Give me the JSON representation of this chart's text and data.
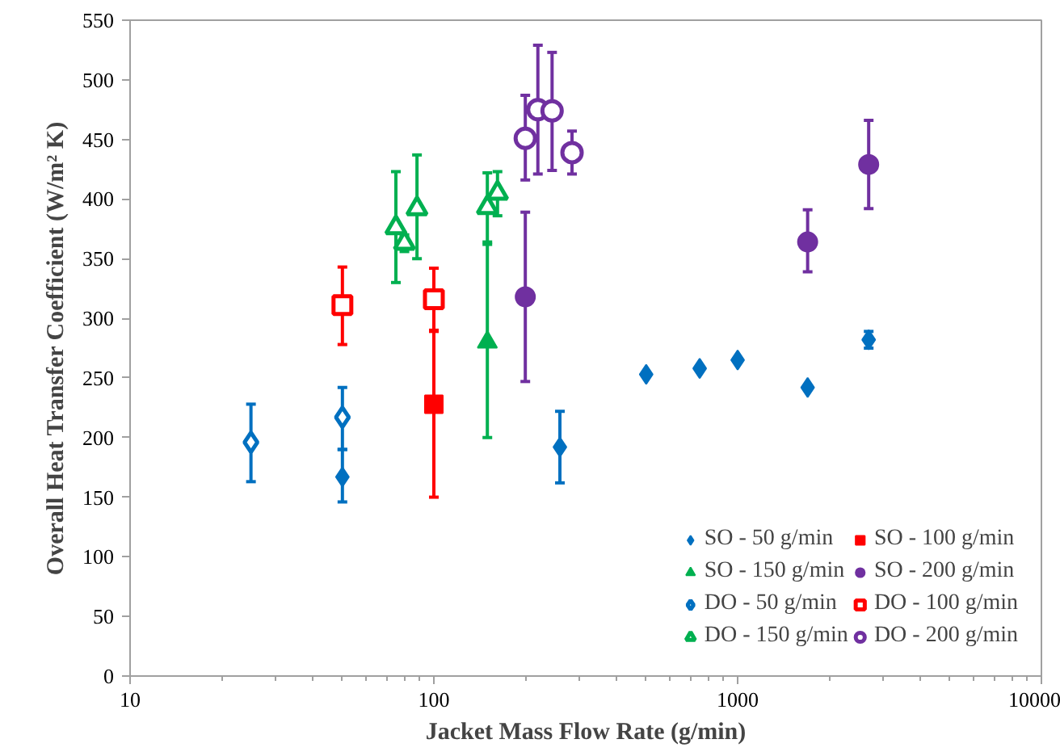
{
  "chart_data": {
    "type": "scatter",
    "xlabel": "Jacket Mass Flow Rate (g/min)",
    "ylabel": "Overall Heat Transfer Coefficient (W/m² K)",
    "log": "x",
    "xlim": [
      10,
      10000
    ],
    "xticks": [
      10,
      100,
      1000,
      10000
    ],
    "ylim": [
      0,
      550
    ],
    "yticks": [
      0,
      50,
      100,
      150,
      200,
      250,
      300,
      350,
      400,
      450,
      500,
      550
    ],
    "grid": false,
    "legend": "bottom right",
    "series": [
      {
        "name": "SO - 50 g/min",
        "color": "#0070c0",
        "marker": "diamond",
        "x": [
          50,
          260,
          500,
          750,
          1000,
          1700,
          2700
        ],
        "values": [
          167,
          192,
          253,
          258,
          265,
          242,
          282
        ],
        "errors": [
          [
            146,
            190
          ],
          [
            162,
            222
          ],
          null,
          null,
          null,
          null,
          [
            275,
            289
          ]
        ]
      },
      {
        "name": "SO - 100 g/min",
        "color": "#ff0000",
        "marker": "square",
        "x": [
          100
        ],
        "values": [
          228
        ],
        "errors": [
          [
            150,
            290
          ]
        ]
      },
      {
        "name": "SO - 150 g/min",
        "color": "#00b050",
        "marker": "triangle",
        "x": [
          150
        ],
        "values": [
          280
        ],
        "errors": [
          [
            200,
            362
          ]
        ]
      },
      {
        "name": "SO - 200 g/min",
        "color": "#7030a0",
        "marker": "circle",
        "x": [
          200,
          1700,
          2700
        ],
        "values": [
          318,
          364,
          429
        ],
        "errors": [
          [
            247,
            389
          ],
          [
            339,
            391
          ],
          [
            392,
            466
          ]
        ]
      },
      {
        "name": "DO - 50 g/min",
        "color": "#0070c0",
        "marker": "diamond_open",
        "x": [
          25,
          50
        ],
        "values": [
          196,
          217
        ],
        "errors": [
          [
            163,
            228
          ],
          [
            190,
            242
          ]
        ]
      },
      {
        "name": "DO - 100 g/min",
        "color": "#ff0000",
        "marker": "square_open",
        "x": [
          50,
          100
        ],
        "values": [
          311,
          316
        ],
        "errors": [
          [
            278,
            343
          ],
          [
            289,
            342
          ]
        ]
      },
      {
        "name": "DO - 150 g/min",
        "color": "#00b050",
        "marker": "triangle_open",
        "x": [
          75,
          80,
          88,
          150,
          162
        ],
        "values": [
          376,
          363,
          392,
          393,
          405
        ],
        "errors": [
          [
            330,
            423
          ],
          [
            356,
            370
          ],
          [
            350,
            437
          ],
          [
            364,
            422
          ],
          [
            386,
            423
          ]
        ]
      },
      {
        "name": "DO - 200 g/min",
        "color": "#7030a0",
        "marker": "circle_open",
        "x": [
          200,
          220,
          245,
          285
        ],
        "values": [
          451,
          475,
          474,
          439
        ],
        "errors": [
          [
            416,
            487
          ],
          [
            421,
            529
          ],
          [
            424,
            523
          ],
          [
            421,
            457
          ]
        ]
      }
    ]
  }
}
